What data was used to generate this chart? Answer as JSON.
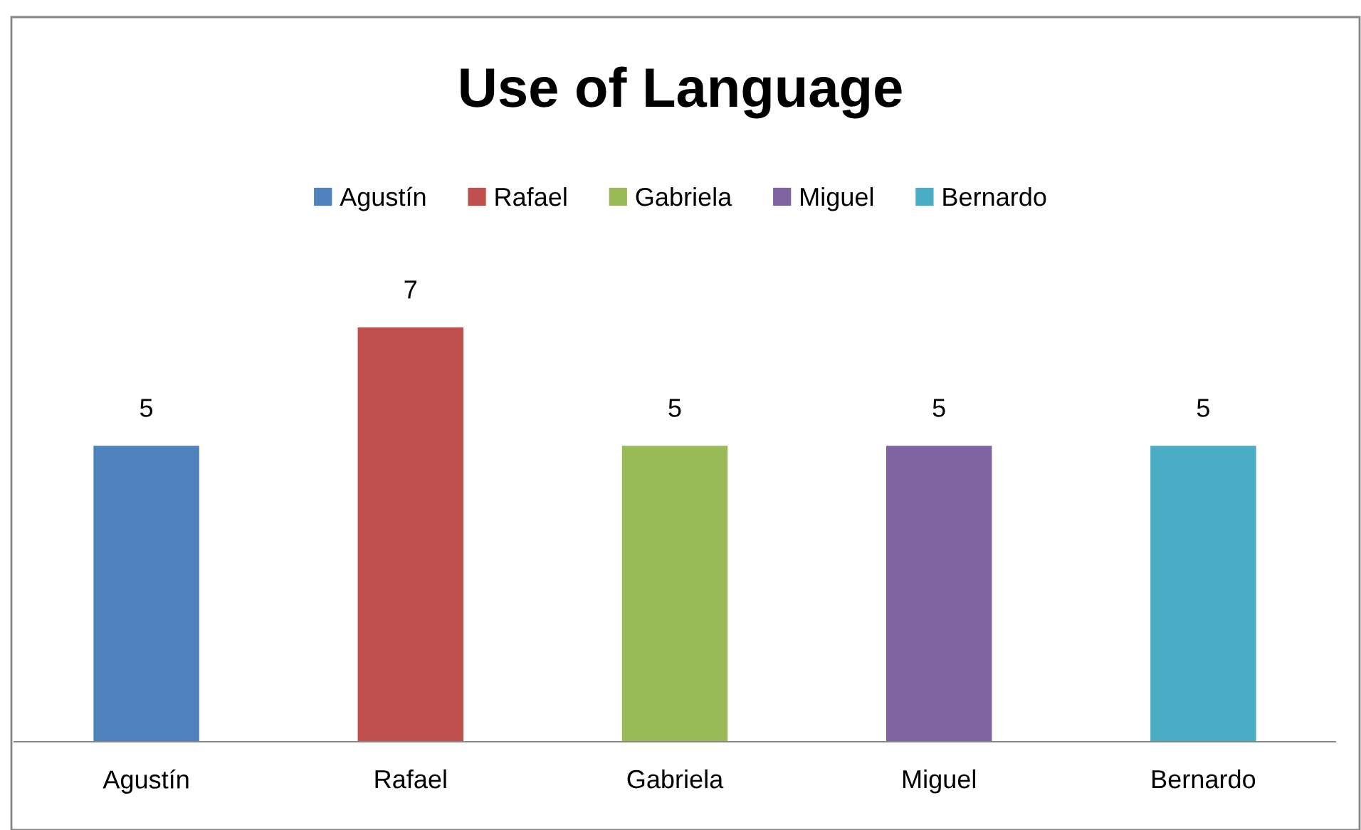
{
  "chart_data": {
    "type": "bar",
    "title": "Use of Language",
    "categories": [
      "Agustín",
      "Rafael",
      "Gabriela",
      "Miguel",
      "Bernardo"
    ],
    "series": [
      {
        "name": "Agustín",
        "color": "#4f81bd",
        "values": [
          5,
          null,
          null,
          null,
          null
        ]
      },
      {
        "name": "Rafael",
        "color": "#c0504d",
        "values": [
          null,
          7,
          null,
          null,
          null
        ]
      },
      {
        "name": "Gabriela",
        "color": "#9bbb59",
        "values": [
          null,
          null,
          5,
          null,
          null
        ]
      },
      {
        "name": "Miguel",
        "color": "#8064a2",
        "values": [
          null,
          null,
          null,
          5,
          null
        ]
      },
      {
        "name": "Bernardo",
        "color": "#4bacc6",
        "values": [
          null,
          null,
          null,
          null,
          5
        ]
      }
    ],
    "data_labels": true,
    "legend": "top"
  }
}
